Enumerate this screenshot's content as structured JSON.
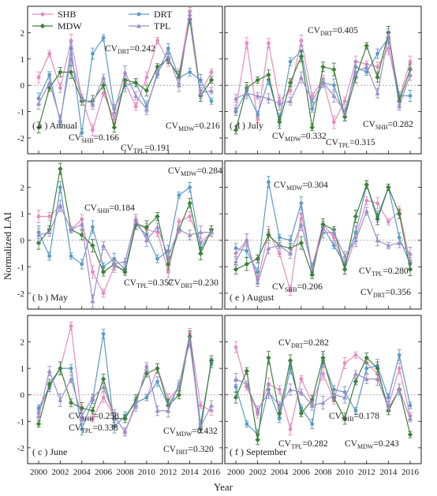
{
  "figure": {
    "ylabel": "Normalized LAI",
    "xlabel": "Year",
    "x_ticks": [
      "2000",
      "2002",
      "2004",
      "2006",
      "2008",
      "2010",
      "2012",
      "2014",
      "2016"
    ],
    "y_ticks": [
      "-2",
      "-1",
      "0",
      "1",
      "2"
    ]
  },
  "legend": [
    {
      "name": "SHB",
      "color": "#e88bbf",
      "marker": "circle"
    },
    {
      "name": "DRT",
      "color": "#5b9bc8",
      "marker": "circle"
    },
    {
      "name": "MDW",
      "color": "#3f7f3a",
      "marker": "diamond"
    },
    {
      "name": "TPL",
      "color": "#9a8fc9",
      "marker": "triangle"
    }
  ],
  "chart_data": [
    {
      "type": "line",
      "panel_label": "( a ) Annual",
      "x": [
        2000,
        2001,
        2002,
        2003,
        2004,
        2005,
        2006,
        2007,
        2008,
        2009,
        2010,
        2011,
        2012,
        2013,
        2014,
        2015,
        2016
      ],
      "ylim": [
        -2.6,
        3.0
      ],
      "series": [
        {
          "name": "SHB",
          "values": [
            0.3,
            1.2,
            -0.1,
            1.7,
            -0.5,
            -1.7,
            -0.3,
            -1.3,
            0.1,
            -0.8,
            0.3,
            1.7,
            0.9,
            0.4,
            2.8,
            -0.3,
            0.5
          ]
        },
        {
          "name": "DRT",
          "values": [
            -0.5,
            0.4,
            -1.4,
            1.4,
            -1.8,
            1.2,
            1.8,
            -0.9,
            0.0,
            0.1,
            -0.8,
            0.4,
            1.4,
            0.3,
            0.5,
            0.2,
            -0.6
          ]
        },
        {
          "name": "MDW",
          "values": [
            -1.6,
            -0.1,
            0.5,
            0.5,
            -0.6,
            -0.6,
            0.0,
            -1.6,
            0.2,
            0.1,
            -0.2,
            0.7,
            1.0,
            0.3,
            2.5,
            -0.4,
            0.2
          ]
        },
        {
          "name": "TPL",
          "values": [
            -0.7,
            0.1,
            -1.3,
            1.0,
            -0.5,
            -0.7,
            0.3,
            -1.0,
            0.5,
            -0.4,
            -0.9,
            0.5,
            1.1,
            0.0,
            2.7,
            -0.3,
            -0.2
          ]
        }
      ],
      "annotations": [
        {
          "base": "CV",
          "sub": "DRT",
          "val": "=0.242"
        },
        {
          "base": "CV",
          "sub": "MDW",
          "val": "=0.216"
        },
        {
          "base": "CV",
          "sub": "SHB",
          "val": "=0.166"
        },
        {
          "base": "CV",
          "sub": "TPL",
          "val": "=0.191"
        }
      ]
    },
    {
      "type": "line",
      "panel_label": "( d ) July",
      "x": [
        2000,
        2001,
        2002,
        2003,
        2004,
        2005,
        2006,
        2007,
        2008,
        2009,
        2010,
        2011,
        2012,
        2013,
        2014,
        2015,
        2016
      ],
      "ylim": [
        -2.6,
        3.0
      ],
      "series": [
        {
          "name": "SHB",
          "values": [
            -0.9,
            1.6,
            -1.3,
            1.6,
            -0.6,
            -0.2,
            1.7,
            -0.4,
            0.2,
            -1.4,
            -0.6,
            0.9,
            0.8,
            0.7,
            1.4,
            -0.5,
            0.9
          ]
        },
        {
          "name": "DRT",
          "values": [
            -1.0,
            -0.2,
            -1.1,
            0.2,
            -1.3,
            0.9,
            1.3,
            -0.9,
            0.1,
            0.0,
            -1.2,
            0.7,
            0.5,
            1.2,
            1.8,
            -0.4,
            -0.4
          ]
        },
        {
          "name": "MDW",
          "values": [
            -1.7,
            -0.1,
            0.2,
            0.4,
            -1.4,
            0.1,
            1.1,
            -1.6,
            0.7,
            0.6,
            -1.2,
            0.3,
            1.5,
            0.3,
            2.0,
            -0.6,
            0.6
          ]
        },
        {
          "name": "TPL",
          "values": [
            -0.5,
            -0.3,
            -0.4,
            -0.5,
            -0.7,
            -0.6,
            0.3,
            -0.6,
            0.1,
            -0.4,
            -1.0,
            0.5,
            0.7,
            -0.3,
            1.9,
            -0.8,
            0.4
          ]
        }
      ],
      "annotations": [
        {
          "base": "CV",
          "sub": "DRT",
          "val": "=0.405"
        },
        {
          "base": "CV",
          "sub": "SHB",
          "val": "=0.282"
        },
        {
          "base": "CV",
          "sub": "MDW",
          "val": "=0.332"
        },
        {
          "base": "CV",
          "sub": "TPL",
          "val": "=0.315"
        }
      ]
    },
    {
      "type": "line",
      "panel_label": "( b ) May",
      "x": [
        2000,
        2001,
        2002,
        2003,
        2004,
        2005,
        2006,
        2007,
        2008,
        2009,
        2010,
        2011,
        2012,
        2013,
        2014,
        2015,
        2016
      ],
      "ylim": [
        -2.6,
        3.0
      ],
      "series": [
        {
          "name": "SHB",
          "values": [
            0.9,
            0.9,
            1.3,
            0.4,
            0.8,
            -1.2,
            -2.0,
            -1.0,
            -1.1,
            0.7,
            0.4,
            0.3,
            -1.2,
            0.7,
            0.9,
            -0.1,
            0.3
          ]
        },
        {
          "name": "DRT",
          "values": [
            0.3,
            -0.6,
            2.0,
            -0.6,
            -0.9,
            0.5,
            -1.0,
            -0.7,
            -1.1,
            0.6,
            0.2,
            -0.7,
            -0.4,
            1.7,
            2.0,
            -0.3,
            0.3
          ]
        },
        {
          "name": "MDW",
          "values": [
            -0.1,
            0.4,
            2.7,
            0.4,
            0.2,
            -0.2,
            -1.2,
            -0.9,
            -1.2,
            0.6,
            0.5,
            0.9,
            -0.9,
            0.4,
            1.4,
            -0.5,
            0.4
          ]
        },
        {
          "name": "TPL",
          "values": [
            0.2,
            0.3,
            1.3,
            0.4,
            0.6,
            -2.3,
            -0.2,
            -0.9,
            -0.8,
            0.8,
            0.0,
            0.5,
            -0.6,
            0.4,
            0.2,
            0.3,
            0.3
          ]
        }
      ],
      "annotations": [
        {
          "base": "CV",
          "sub": "MDW",
          "val": "=0.284"
        },
        {
          "base": "CV",
          "sub": "SHB",
          "val": "=0.184"
        },
        {
          "base": "CV",
          "sub": "TPL",
          "val": "=0.357"
        },
        {
          "base": "CV",
          "sub": "DRT",
          "val": "=0.230"
        }
      ]
    },
    {
      "type": "line",
      "panel_label": "( e ) August",
      "x": [
        2000,
        2001,
        2002,
        2003,
        2004,
        2005,
        2006,
        2007,
        2008,
        2009,
        2010,
        2011,
        2012,
        2013,
        2014,
        2015,
        2016
      ],
      "ylim": [
        -2.6,
        3.0
      ],
      "series": [
        {
          "name": "SHB",
          "values": [
            -0.5,
            0.0,
            -1.5,
            0.3,
            -0.5,
            -1.9,
            1.0,
            -1.0,
            0.6,
            0.1,
            -1.1,
            0.1,
            1.5,
            1.4,
            0.7,
            1.1,
            -0.8
          ]
        },
        {
          "name": "DRT",
          "values": [
            -0.3,
            -0.4,
            -1.2,
            2.2,
            0.1,
            0.0,
            1.4,
            -1.2,
            0.5,
            -0.2,
            -0.9,
            0.3,
            2.1,
            0.9,
            2.0,
            0.1,
            -0.9
          ]
        },
        {
          "name": "MDW",
          "values": [
            -1.1,
            -0.9,
            -0.7,
            0.2,
            -0.2,
            -0.3,
            -0.1,
            -1.3,
            0.6,
            0.4,
            -1.1,
            0.9,
            2.1,
            0.8,
            2.0,
            1.0,
            -1.1
          ]
        },
        {
          "name": "TPL",
          "values": [
            -0.8,
            0.0,
            -1.6,
            -0.3,
            -0.2,
            -0.5,
            0.6,
            -1.0,
            0.3,
            0.3,
            -0.6,
            0.0,
            1.1,
            0.0,
            -0.2,
            -0.1,
            -0.5
          ]
        }
      ],
      "annotations": [
        {
          "base": "CV",
          "sub": "MDW",
          "val": "=0.304"
        },
        {
          "base": "CV",
          "sub": "TPL",
          "val": "=0.280"
        },
        {
          "base": "CV",
          "sub": "SHB",
          "val": "=0.206"
        },
        {
          "base": "CV",
          "sub": "DRT",
          "val": "=0.356"
        }
      ]
    },
    {
      "type": "line",
      "panel_label": "( c ) June",
      "x": [
        2000,
        2001,
        2002,
        2003,
        2004,
        2005,
        2006,
        2007,
        2008,
        2009,
        2010,
        2011,
        2012,
        2013,
        2014,
        2015,
        2016
      ],
      "ylim": [
        -2.6,
        3.0
      ],
      "series": [
        {
          "name": "SHB",
          "values": [
            -0.7,
            0.3,
            1.0,
            2.6,
            -0.9,
            -0.9,
            -0.1,
            -0.8,
            -1.4,
            -0.3,
            -0.1,
            1.0,
            -0.2,
            0.3,
            2.3,
            -0.4,
            -0.6
          ]
        },
        {
          "name": "DRT",
          "values": [
            -0.5,
            0.3,
            1.0,
            1.0,
            -1.3,
            -0.2,
            2.3,
            -1.2,
            -0.8,
            -0.3,
            -0.1,
            0.5,
            -0.4,
            0.3,
            2.2,
            -1.1,
            1.2
          ]
        },
        {
          "name": "MDW",
          "values": [
            -1.1,
            0.4,
            1.0,
            -0.3,
            -0.5,
            -0.6,
            0.6,
            -0.9,
            -0.9,
            -0.2,
            0.8,
            1.0,
            -0.4,
            0.0,
            2.2,
            -1.3,
            1.3
          ]
        },
        {
          "name": "TPL",
          "values": [
            -0.8,
            0.9,
            -0.2,
            0.6,
            -0.8,
            -0.1,
            0.3,
            -0.8,
            -1.4,
            -0.4,
            1.1,
            -0.6,
            -0.6,
            0.4,
            2.0,
            -1.2,
            -0.4
          ]
        }
      ],
      "annotations": [
        {
          "base": "CV",
          "sub": "SHB",
          "val": "=0.258"
        },
        {
          "base": "CV",
          "sub": "TPL",
          "val": "=0.338"
        },
        {
          "base": "CV",
          "sub": "MDW",
          "val": "=0.432"
        },
        {
          "base": "CV",
          "sub": "DRT",
          "val": "=0.320"
        }
      ]
    },
    {
      "type": "line",
      "panel_label": "( f ) September",
      "x": [
        2000,
        2001,
        2002,
        2003,
        2004,
        2005,
        2006,
        2007,
        2008,
        2009,
        2010,
        2011,
        2012,
        2013,
        2014,
        2015,
        2016
      ],
      "ylim": [
        -2.6,
        3.0
      ],
      "series": [
        {
          "name": "SHB",
          "values": [
            1.8,
            0.3,
            -0.7,
            0.4,
            0.2,
            -1.3,
            0.6,
            -0.3,
            0.8,
            -0.2,
            1.2,
            1.5,
            1.2,
            0.8,
            -0.4,
            1.0,
            -0.8
          ]
        },
        {
          "name": "DRT",
          "values": [
            0.3,
            -1.1,
            -1.5,
            0.2,
            -0.9,
            1.0,
            -0.5,
            -1.1,
            1.3,
            0.2,
            0.1,
            -0.6,
            1.0,
            1.1,
            -0.1,
            1.5,
            -0.4
          ]
        },
        {
          "name": "MDW",
          "values": [
            -0.1,
            0.9,
            -1.7,
            1.4,
            -0.7,
            1.3,
            -0.7,
            -0.2,
            1.4,
            -0.1,
            -0.9,
            0.5,
            1.4,
            1.0,
            -0.6,
            0.2,
            -1.5
          ]
        },
        {
          "name": "TPL",
          "values": [
            0.6,
            0.4,
            -0.6,
            0.1,
            -0.4,
            0.2,
            0.1,
            -0.4,
            -0.3,
            0.0,
            -0.1,
            0.8,
            0.6,
            0.6,
            -0.5,
            0.2,
            -0.9
          ]
        }
      ],
      "annotations": [
        {
          "base": "CV",
          "sub": "DRT",
          "val": "=0.282"
        },
        {
          "base": "CV",
          "sub": "SHB",
          "val": "=0.178"
        },
        {
          "base": "CV",
          "sub": "TPL",
          "val": "=0.282"
        },
        {
          "base": "CV",
          "sub": "MDW",
          "val": "=0.243"
        }
      ]
    }
  ]
}
